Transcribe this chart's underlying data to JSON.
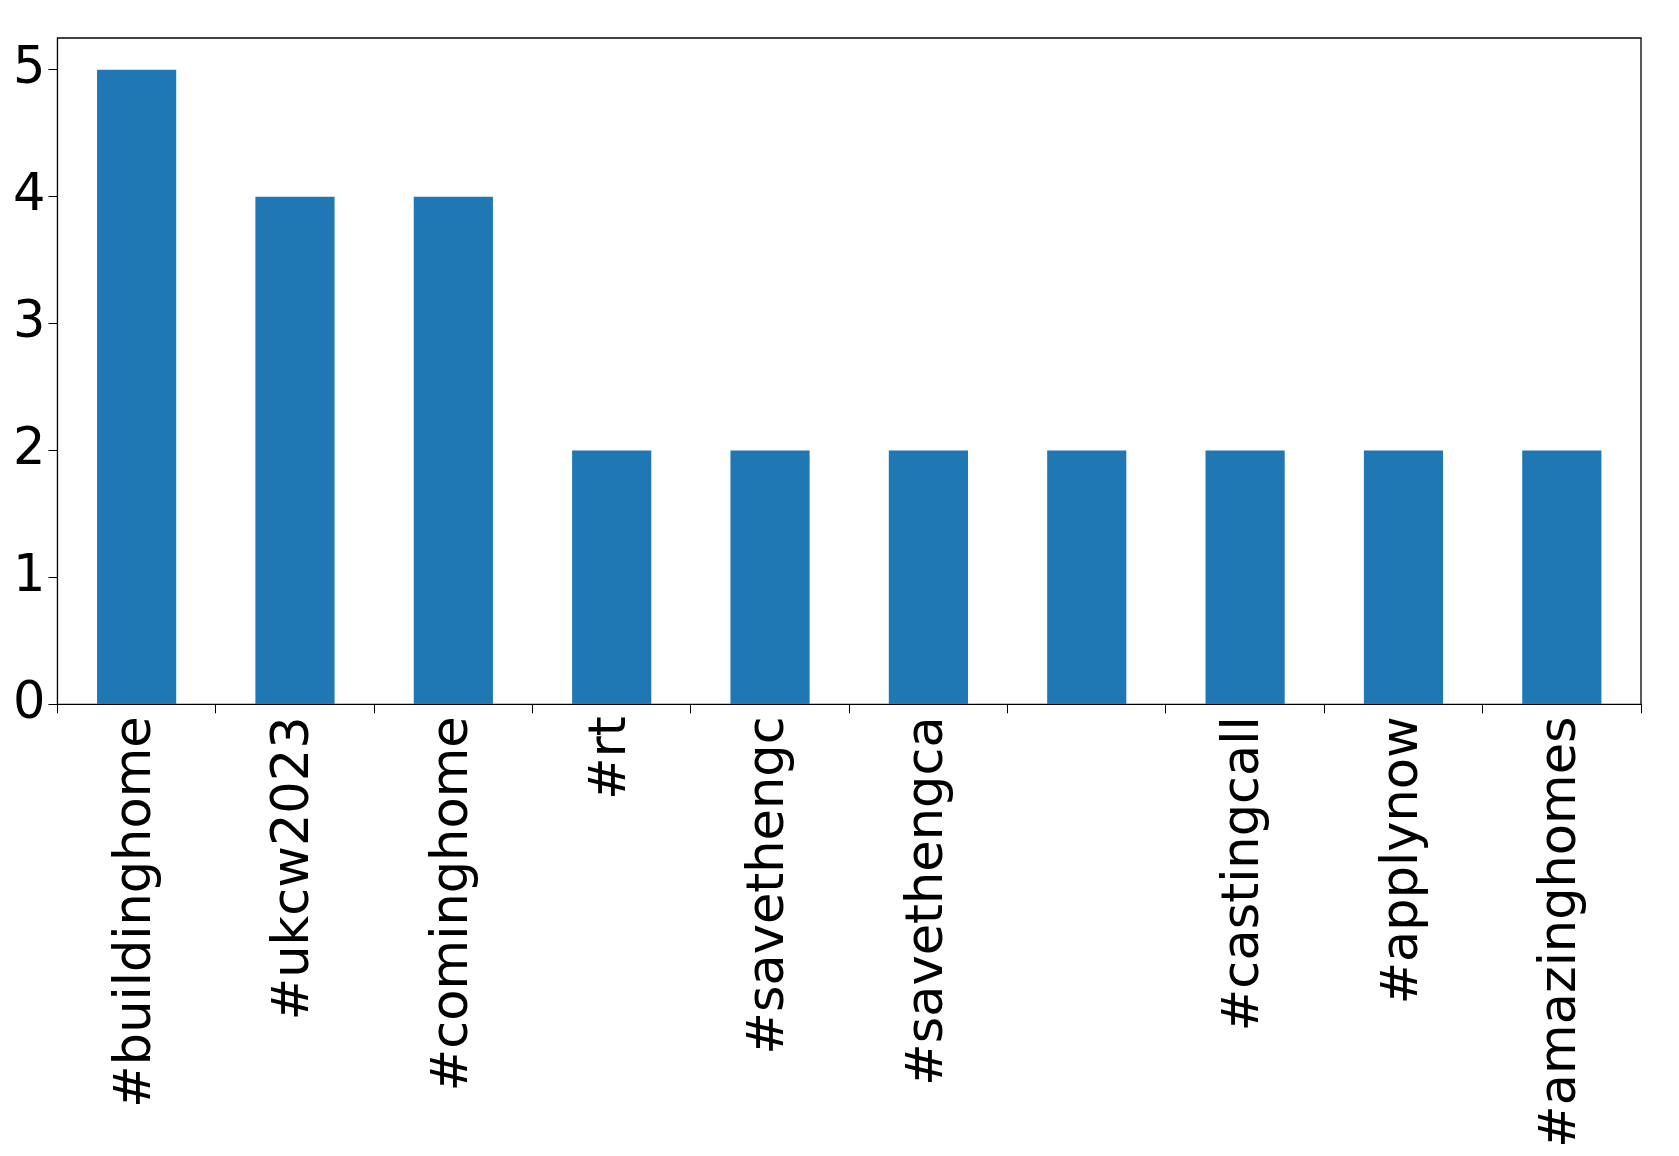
{
  "chart_data": {
    "type": "bar",
    "categories": [
      "#buildinghome",
      "#ukcw2023",
      "#cominghome",
      "#rt",
      "#savethengc",
      "#savethengca",
      null,
      "#castingcall",
      "#applynow",
      "#amazinghomes"
    ],
    "values": [
      5,
      4,
      4,
      2,
      2,
      2,
      2,
      2,
      2,
      2
    ],
    "color": "#1f77b4",
    "ylim": [
      0,
      5.25
    ],
    "yticks": [
      0,
      1,
      2,
      3,
      4,
      5
    ],
    "grid": false,
    "legend": false
  }
}
